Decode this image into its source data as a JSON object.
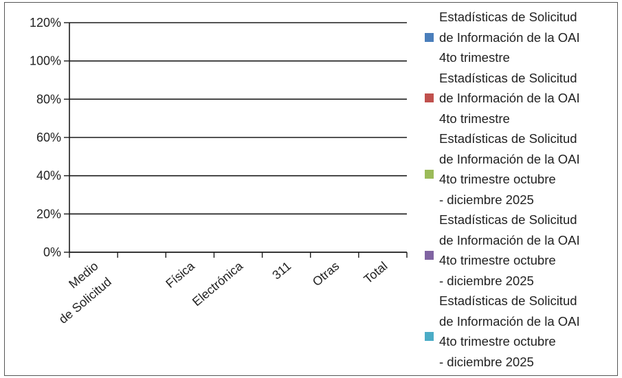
{
  "chart_data": {
    "type": "bar",
    "title": "",
    "xlabel": "",
    "ylabel": "",
    "categories": [
      "Medio\nde Solicitud",
      "",
      "Física",
      "Electrónica",
      "311",
      "Otras",
      "Total"
    ],
    "y_ticks": [
      "0%",
      "20%",
      "40%",
      "60%",
      "80%",
      "100%",
      "120%"
    ],
    "ylim": [
      0,
      1.2
    ],
    "grid": true,
    "legend_position": "right",
    "series": [
      {
        "name": "Estadísticas de Solicitud\nde Información de la OAI\n4to   trimestre",
        "color": "#4a7ebb",
        "values": [
          0,
          0,
          0,
          0,
          0,
          0,
          0
        ]
      },
      {
        "name": "Estadísticas de Solicitud\nde Información de la OAI\n4to   trimestre",
        "color": "#c0504d",
        "values": [
          0,
          0,
          0,
          0,
          0,
          0,
          0
        ]
      },
      {
        "name": "Estadísticas de Solicitud\nde Información de la OAI\n4to   trimestre  octubre\n-  diciembre   2025",
        "color": "#9bbb59",
        "values": [
          0,
          0,
          0,
          0,
          0,
          0,
          0
        ]
      },
      {
        "name": "Estadísticas de Solicitud\nde Información de la OAI\n4to   trimestre  octubre\n-  diciembre   2025",
        "color": "#8064a2",
        "values": [
          0,
          0,
          0,
          0,
          0,
          0,
          0
        ]
      },
      {
        "name": "Estadísticas de Solicitud\nde Información de la OAI\n4to   trimestre  octubre\n-  diciembre   2025",
        "color": "#4bacc6",
        "values": [
          0,
          0,
          0,
          0,
          0,
          0,
          0
        ]
      }
    ]
  }
}
